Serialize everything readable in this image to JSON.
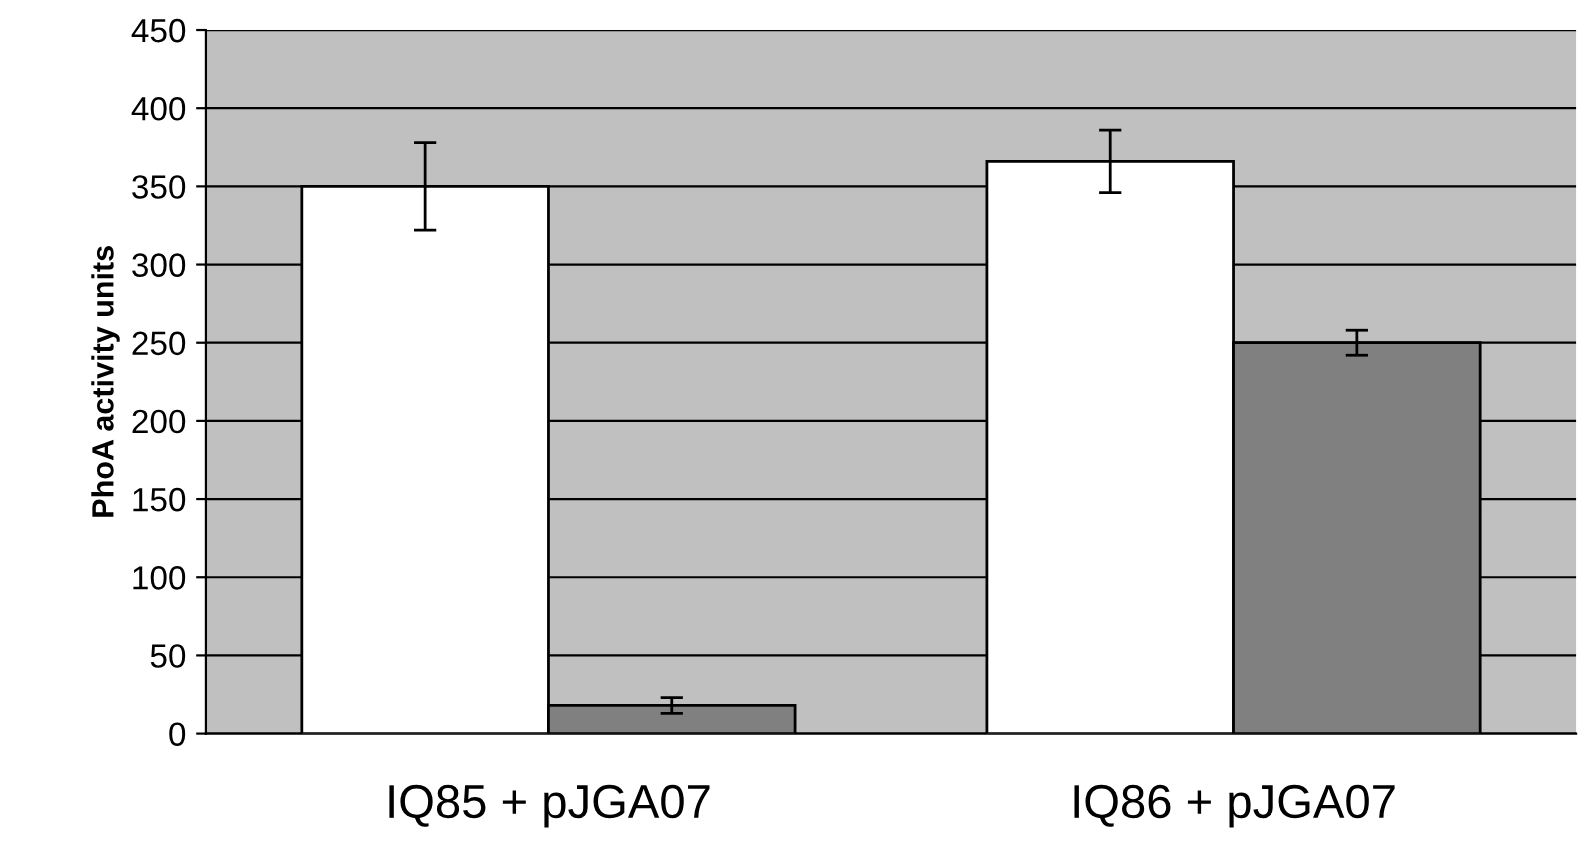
{
  "chart_data": {
    "type": "bar",
    "ylabel": "PhoA activity units",
    "categories": [
      "IQ85 + pJGA07",
      "IQ86 + pJGA07"
    ],
    "series": [
      {
        "color": "#ffffff",
        "values": [
          350,
          366
        ],
        "errors": [
          28,
          20
        ]
      },
      {
        "color": "#808080",
        "values": [
          18,
          250
        ],
        "errors": [
          5,
          8
        ]
      }
    ],
    "ylim": [
      0,
      450
    ],
    "yticks": [
      0,
      50,
      100,
      150,
      200,
      250,
      300,
      350,
      400,
      450
    ],
    "grid": "y"
  }
}
